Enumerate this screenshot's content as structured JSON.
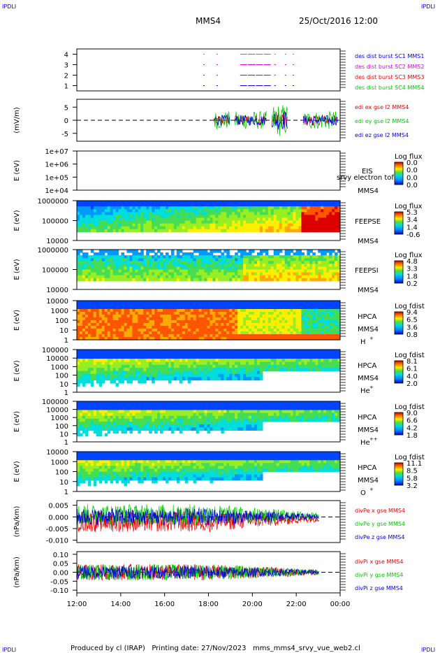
{
  "corner": {
    "tl": "IPDLI",
    "tr": "IPDLI",
    "bl": "IPDLI",
    "br": "IPDLI"
  },
  "header": {
    "spacecraft": "MMS4",
    "datetime": "25/Oct/2016 12:00"
  },
  "footer": "Produced by cl (IRAP)   Printing date: 27/Nov/2023   mms_mms4_srvy_vue_web2.cl",
  "time_ticks": [
    "12:00",
    "14:00",
    "16:00",
    "18:00",
    "20:00",
    "22:00",
    "00:00"
  ],
  "colors": {
    "blue": "#0000dd",
    "green": "#00cc00",
    "red": "#ee0000",
    "magenta": "#dd00dd"
  },
  "chart_data": [
    {
      "type": "line",
      "ylabel": "",
      "ylim": [
        0.5,
        4.5
      ],
      "yticks": [
        "1",
        "2",
        "3",
        "4"
      ],
      "legend": [
        {
          "text": "des dist burst SC1 MMS1",
          "color": "#0000dd"
        },
        {
          "text": "des dist burst SC2 MMS2",
          "color": "#dd00dd"
        },
        {
          "text": "des dist burst SC3 MMS3",
          "color": "#ee0000"
        },
        {
          "text": "des dist burst SC4 MMS4",
          "color": "#00cc00"
        }
      ]
    },
    {
      "type": "line",
      "ylabel": "(mV/m)",
      "ylim": [
        -8,
        8
      ],
      "yticks": [
        "5",
        "0",
        "-5"
      ],
      "legend": [
        {
          "text": "edi ex gse l2 MMS4",
          "color": "#ee0000"
        },
        {
          "text": "edi ey gse l2 MMS4",
          "color": "#00cc00"
        },
        {
          "text": "edi ez gse l2 MMS4",
          "color": "#0000dd"
        }
      ]
    },
    {
      "type": "heatmap",
      "ylabel": "E (eV)",
      "yticks": [
        "1e+07",
        "1e+06",
        "1e+05",
        "1e+04"
      ],
      "instrument": "EIS",
      "overlay": "srvy electron tof",
      "spacecraft": "MMS4",
      "cbar_title": "Log flux",
      "cbar_ticks": [
        "0.0",
        "0.0",
        "0.0",
        "0.0"
      ]
    },
    {
      "type": "heatmap",
      "ylabel": "E (eV)",
      "yticks": [
        "1000000",
        "100000",
        "10000"
      ],
      "instrument": "FEEPSE",
      "spacecraft": "MMS4",
      "cbar_title": "Log flux",
      "cbar_ticks": [
        "5.3",
        "3.4",
        "1.4",
        "-0.6"
      ]
    },
    {
      "type": "heatmap",
      "ylabel": "E (eV)",
      "yticks": [
        "1000000",
        "100000",
        "10000"
      ],
      "instrument": "FEEPSI",
      "spacecraft": "MMS4",
      "cbar_title": "Log flux",
      "cbar_ticks": [
        "4.8",
        "3.3",
        "1.8",
        "0.2"
      ]
    },
    {
      "type": "heatmap",
      "ylabel": "E (eV)",
      "yticks": [
        "10000",
        "1000",
        "100",
        "10",
        "1"
      ],
      "instrument": "HPCA",
      "spacecraft": "MMS4",
      "species": "H",
      "species_sup": "+",
      "cbar_title": "Log fdist",
      "cbar_ticks": [
        "9.4",
        "6.5",
        "3.6",
        "0.8"
      ]
    },
    {
      "type": "heatmap",
      "ylabel": "E (eV)",
      "yticks": [
        "100000",
        "10000",
        "1000",
        "100",
        "10",
        "1"
      ],
      "instrument": "HPCA",
      "spacecraft": "MMS4",
      "species": "He",
      "species_sup": "+",
      "cbar_title": "Log fdist",
      "cbar_ticks": [
        "8.1",
        "6.1",
        "4.0",
        "2.0"
      ]
    },
    {
      "type": "heatmap",
      "ylabel": "E (eV)",
      "yticks": [
        "100000",
        "10000",
        "1000",
        "100",
        "10",
        "1"
      ],
      "instrument": "HPCA",
      "spacecraft": "MMS4",
      "species": "He",
      "species_sup": "++",
      "cbar_title": "Log fdist",
      "cbar_ticks": [
        "9.0",
        "6.6",
        "4.2",
        "1.8"
      ]
    },
    {
      "type": "heatmap",
      "ylabel": "E (eV)",
      "yticks": [
        "10000",
        "1000",
        "100",
        "10",
        "1"
      ],
      "instrument": "HPCA",
      "spacecraft": "MMS4",
      "species": "O",
      "species_sup": "+",
      "cbar_title": "Log fdist",
      "cbar_ticks": [
        "11.1",
        "8.5",
        "5.8",
        "3.2"
      ]
    },
    {
      "type": "line",
      "ylabel": "(nPa/km)",
      "ylim": [
        -0.011,
        0.007
      ],
      "yticks": [
        "0.005",
        "0.000",
        "-0.005",
        "-0.010"
      ],
      "legend": [
        {
          "text": "divPe x gse MMS4",
          "color": "#ee0000"
        },
        {
          "text": "divPe y gse MMS4",
          "color": "#00cc00"
        },
        {
          "text": "divPe z gse MMS4",
          "color": "#0000dd"
        }
      ]
    },
    {
      "type": "line",
      "ylabel": "(nPa/km)",
      "ylim": [
        -0.115,
        0.115
      ],
      "yticks": [
        "0.10",
        "0.05",
        "0.00",
        "-0.05",
        "-0.10"
      ],
      "legend": [
        {
          "text": "divPi x gse MMS4",
          "color": "#ee0000"
        },
        {
          "text": "divPi y gse MMS4",
          "color": "#00cc00"
        },
        {
          "text": "divPi z gse MMS4",
          "color": "#0000dd"
        }
      ]
    }
  ]
}
